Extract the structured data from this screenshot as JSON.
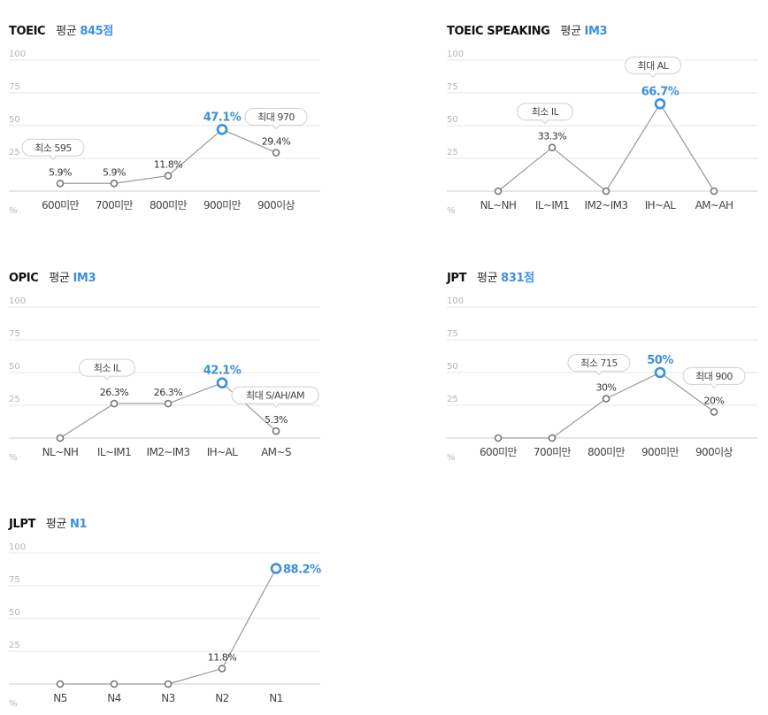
{
  "accent_color": "#3a8fe0",
  "charts": [
    {
      "name": "TOEIC",
      "stat_label": "평균",
      "stat_value": "845점",
      "chart_data": {
        "type": "line",
        "categories": [
          "600미만",
          "700미만",
          "800미만",
          "900미만",
          "900이상"
        ],
        "values": [
          5.9,
          5.9,
          11.8,
          47.1,
          29.4
        ],
        "value_labels": [
          "5.9%",
          "5.9%",
          "11.8%",
          "47.1%",
          "29.4%"
        ],
        "highlight_index": 3,
        "ylim": [
          0,
          100
        ],
        "yticks": [
          25,
          50,
          75,
          100
        ],
        "unit_label": "%",
        "annotations": [
          {
            "index": 0,
            "text": "최소 595"
          },
          {
            "index": 4,
            "text": "최대 970"
          }
        ]
      }
    },
    {
      "name": "TOEIC SPEAKING",
      "stat_label": "평균",
      "stat_value": "IM3",
      "chart_data": {
        "type": "line",
        "categories": [
          "NL~NH",
          "IL~IM1",
          "IM2~IM3",
          "IH~AL",
          "AM~AH"
        ],
        "values": [
          0,
          33.3,
          0,
          66.7,
          0
        ],
        "value_labels": [
          "",
          "33.3%",
          "",
          "66.7%",
          ""
        ],
        "highlight_index": 3,
        "ylim": [
          0,
          100
        ],
        "yticks": [
          25,
          50,
          75,
          100
        ],
        "unit_label": "%",
        "annotations": [
          {
            "index": 1,
            "text": "최소 IL"
          },
          {
            "index": 3,
            "text": "최대 AL"
          }
        ]
      }
    },
    {
      "name": "OPIC",
      "stat_label": "평균",
      "stat_value": "IM3",
      "chart_data": {
        "type": "line",
        "categories": [
          "NL~NH",
          "IL~IM1",
          "IM2~IM3",
          "IH~AL",
          "AM~S"
        ],
        "values": [
          0,
          26.3,
          26.3,
          42.1,
          5.3
        ],
        "value_labels": [
          "",
          "26.3%",
          "26.3%",
          "42.1%",
          "5.3%"
        ],
        "highlight_index": 3,
        "ylim": [
          0,
          100
        ],
        "yticks": [
          25,
          50,
          75,
          100
        ],
        "unit_label": "%",
        "annotations": [
          {
            "index": 1,
            "text": "최소 IL"
          },
          {
            "index": 4,
            "text": "최대 S/AH/AM"
          }
        ]
      }
    },
    {
      "name": "JPT",
      "stat_label": "평균",
      "stat_value": "831점",
      "chart_data": {
        "type": "line",
        "categories": [
          "600미만",
          "700미만",
          "800미만",
          "900미만",
          "900이상"
        ],
        "values": [
          0,
          0,
          30,
          50,
          20
        ],
        "value_labels": [
          "",
          "",
          "30%",
          "50%",
          "20%"
        ],
        "highlight_index": 3,
        "ylim": [
          0,
          100
        ],
        "yticks": [
          25,
          50,
          75,
          100
        ],
        "unit_label": "%",
        "annotations": [
          {
            "index": 2,
            "text": "최소 715"
          },
          {
            "index": 4,
            "text": "최대 900"
          }
        ]
      }
    },
    {
      "name": "JLPT",
      "stat_label": "평균",
      "stat_value": "N1",
      "chart_data": {
        "type": "line",
        "categories": [
          "N5",
          "N4",
          "N3",
          "N2",
          "N1"
        ],
        "values": [
          0,
          0,
          0,
          11.8,
          88.2
        ],
        "value_labels": [
          "",
          "",
          "",
          "11.8%",
          "88.2%"
        ],
        "highlight_index": 4,
        "ylim": [
          0,
          100
        ],
        "yticks": [
          25,
          50,
          75,
          100
        ],
        "unit_label": "%",
        "annotations": []
      }
    }
  ]
}
